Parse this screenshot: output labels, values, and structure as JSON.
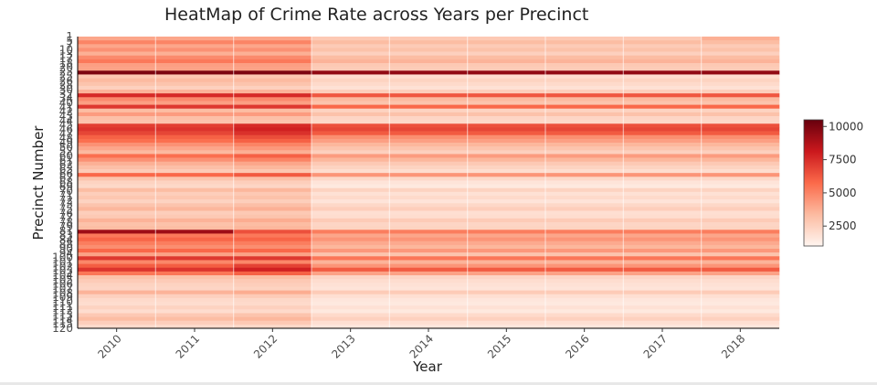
{
  "chart_data": {
    "type": "heatmap",
    "title": "HeatMap of Crime Rate across Years per Precinct",
    "xlabel": "Year",
    "ylabel": "Precinct Number",
    "x": [
      "2010",
      "2011",
      "2012",
      "2013",
      "2014",
      "2015",
      "2016",
      "2017",
      "2018"
    ],
    "y": [
      "1",
      "5",
      "6",
      "7",
      "9",
      "10",
      "13",
      "14",
      "17",
      "18",
      "19",
      "20",
      "22",
      "23",
      "24",
      "25",
      "26",
      "28",
      "30",
      "32",
      "33",
      "34",
      "40",
      "41",
      "42",
      "43",
      "44",
      "45",
      "46",
      "47",
      "48",
      "49",
      "50",
      "52",
      "60",
      "61",
      "62",
      "63",
      "66",
      "67",
      "68",
      "69",
      "70",
      "71",
      "72",
      "73",
      "75",
      "76",
      "77",
      "78",
      "79",
      "81",
      "83",
      "84",
      "88",
      "90",
      "94",
      "100",
      "101",
      "102",
      "103",
      "104",
      "105",
      "106",
      "107",
      "108",
      "109",
      "110",
      "111",
      "112",
      "113",
      "114",
      "115",
      "120",
      "121",
      "122",
      "123"
    ],
    "y_ticks_shown": [
      "1",
      "5",
      "7",
      "10",
      "13",
      "17",
      "18",
      "20",
      "23",
      "25",
      "26",
      "28",
      "30",
      "32",
      "34",
      "40",
      "41",
      "42",
      "43",
      "44",
      "45",
      "46",
      "47",
      "48",
      "49",
      "50",
      "52",
      "60",
      "61",
      "62",
      "63",
      "66",
      "67",
      "68",
      "69",
      "70",
      "71",
      "72",
      "73",
      "75",
      "76",
      "77",
      "78",
      "79",
      "81",
      "83",
      "84",
      "88",
      "90",
      "94",
      "100",
      "101",
      "102",
      "103",
      "104",
      "105",
      "106",
      "107",
      "108",
      "109",
      "110",
      "111",
      "112",
      "113",
      "114",
      "115",
      "120"
    ],
    "values": [
      [
        4000,
        4000,
        4000,
        2800,
        2800,
        2800,
        2800,
        2800,
        3700
      ],
      [
        5000,
        5000,
        5000,
        3300,
        3300,
        3300,
        3300,
        3300,
        3300
      ],
      [
        4000,
        4000,
        4000,
        2700,
        2700,
        2700,
        2700,
        2700,
        2700
      ],
      [
        4600,
        4600,
        4600,
        3100,
        3100,
        3100,
        3100,
        3100,
        3100
      ],
      [
        3700,
        3700,
        3700,
        2500,
        2500,
        2500,
        2500,
        2500,
        2500
      ],
      [
        4800,
        4800,
        4800,
        3300,
        3300,
        3300,
        3300,
        3300,
        3300
      ],
      [
        5300,
        5300,
        5300,
        3600,
        3600,
        3600,
        3600,
        3600,
        3600
      ],
      [
        4200,
        4200,
        4200,
        2800,
        2800,
        2800,
        2800,
        2800,
        2800
      ],
      [
        4100,
        4100,
        4100,
        2700,
        2700,
        2700,
        2700,
        2700,
        2700
      ],
      [
        10000,
        10000,
        10000,
        9500,
        9500,
        9500,
        9500,
        9500,
        9500
      ],
      [
        2900,
        2900,
        2900,
        2000,
        2000,
        2000,
        2000,
        2000,
        2000
      ],
      [
        3400,
        3400,
        3400,
        2400,
        2400,
        2400,
        2400,
        2400,
        2400
      ],
      [
        3000,
        3000,
        3000,
        2100,
        2100,
        2100,
        2100,
        2100,
        2100
      ],
      [
        2500,
        2500,
        2500,
        1800,
        1800,
        1800,
        1800,
        1800,
        1800
      ],
      [
        3600,
        3600,
        3600,
        2600,
        2600,
        2600,
        2600,
        2600,
        2600
      ],
      [
        7600,
        7600,
        7600,
        6300,
        6300,
        6300,
        6300,
        6300,
        6300
      ],
      [
        4800,
        4800,
        4800,
        3400,
        3400,
        3400,
        3400,
        3400,
        3400
      ],
      [
        4200,
        4200,
        4200,
        3000,
        3000,
        3000,
        3000,
        3000,
        3000
      ],
      [
        7200,
        7200,
        7200,
        5800,
        5800,
        5800,
        5800,
        5800,
        5800
      ],
      [
        3300,
        3300,
        3300,
        2400,
        2400,
        2400,
        2400,
        2400,
        2400
      ],
      [
        4300,
        4300,
        4300,
        3100,
        3100,
        3100,
        3100,
        3100,
        3100
      ],
      [
        3200,
        3200,
        3200,
        2300,
        2300,
        2300,
        2300,
        2300,
        2300
      ],
      [
        3000,
        3000,
        3000,
        2200,
        2200,
        2200,
        2200,
        2200,
        2200
      ],
      [
        7000,
        7000,
        7600,
        6500,
        6500,
        6500,
        6500,
        6500,
        6500
      ],
      [
        7300,
        7300,
        7900,
        6800,
        6800,
        6800,
        6800,
        6800,
        6800
      ],
      [
        6800,
        6800,
        7400,
        6200,
        6200,
        6200,
        6200,
        6200,
        6200
      ],
      [
        6000,
        6000,
        6600,
        4700,
        4700,
        4700,
        4700,
        4700,
        4700
      ],
      [
        5600,
        5600,
        6000,
        4200,
        4200,
        4200,
        4200,
        4200,
        4200
      ],
      [
        4600,
        4600,
        5000,
        3500,
        3500,
        3500,
        3500,
        3500,
        3500
      ],
      [
        4000,
        4000,
        4400,
        3000,
        3000,
        3000,
        3000,
        3000,
        3000
      ],
      [
        3400,
        3400,
        3700,
        2500,
        2500,
        2500,
        2500,
        2500,
        2500
      ],
      [
        5600,
        5600,
        6000,
        4300,
        4300,
        4300,
        4300,
        4300,
        4300
      ],
      [
        4600,
        4600,
        5000,
        3500,
        3500,
        3500,
        3500,
        3500,
        3500
      ],
      [
        3700,
        3700,
        4000,
        2800,
        2800,
        2800,
        2800,
        2800,
        2800
      ],
      [
        3200,
        3200,
        3500,
        2400,
        2400,
        2400,
        2400,
        2400,
        2400
      ],
      [
        2700,
        2700,
        2900,
        2000,
        2000,
        2000,
        2000,
        2000,
        2000
      ],
      [
        5800,
        5800,
        6200,
        4500,
        4500,
        4500,
        4500,
        4500,
        4500
      ],
      [
        3000,
        3000,
        3200,
        2200,
        2200,
        2200,
        2200,
        2200,
        2200
      ],
      [
        2400,
        2400,
        2600,
        1700,
        1700,
        1700,
        1700,
        1700,
        1700
      ],
      [
        2200,
        2200,
        2300,
        1500,
        1500,
        1500,
        1500,
        1500,
        1500
      ],
      [
        3300,
        3300,
        3500,
        2400,
        2400,
        2400,
        2400,
        2400,
        2400
      ],
      [
        2600,
        2600,
        2800,
        1800,
        1800,
        1800,
        1800,
        1800,
        1800
      ],
      [
        2900,
        2900,
        3100,
        2100,
        2100,
        2100,
        2100,
        2100,
        2100
      ],
      [
        2400,
        2400,
        2600,
        1700,
        1700,
        1700,
        1700,
        1700,
        1700
      ],
      [
        3000,
        3000,
        3200,
        2200,
        2200,
        2200,
        2200,
        2200,
        2200
      ],
      [
        3500,
        3500,
        3700,
        2600,
        2600,
        2600,
        2600,
        2600,
        2600
      ],
      [
        2600,
        2600,
        2800,
        1900,
        1900,
        1900,
        1900,
        1900,
        1900
      ],
      [
        2800,
        2800,
        3000,
        2000,
        2000,
        2000,
        2000,
        2000,
        2000
      ],
      [
        3600,
        3600,
        3800,
        2700,
        2700,
        2700,
        2700,
        2700,
        2700
      ],
      [
        3100,
        3100,
        3300,
        2300,
        2300,
        2300,
        2300,
        2300,
        2300
      ],
      [
        3300,
        3300,
        3500,
        2400,
        2400,
        2400,
        2400,
        2400,
        2400
      ],
      [
        9200,
        9200,
        6500,
        5200,
        5200,
        5200,
        5200,
        5200,
        5200
      ],
      [
        5300,
        5300,
        5300,
        4000,
        4000,
        4000,
        4000,
        4000,
        4000
      ],
      [
        5900,
        5900,
        5900,
        4500,
        4500,
        4500,
        4500,
        4500,
        4500
      ],
      [
        5200,
        5200,
        5200,
        3900,
        3900,
        3900,
        3900,
        3900,
        3900
      ],
      [
        4700,
        4700,
        4700,
        3500,
        3500,
        3500,
        3500,
        3500,
        3500
      ],
      [
        5800,
        5800,
        5800,
        4400,
        4400,
        4400,
        4400,
        4400,
        4400
      ],
      [
        4100,
        4100,
        4100,
        3000,
        3000,
        3000,
        3000,
        3000,
        3000
      ],
      [
        7200,
        7200,
        7200,
        5400,
        5400,
        5400,
        5400,
        5400,
        5400
      ],
      [
        4900,
        4900,
        4900,
        3600,
        3600,
        3600,
        3600,
        3600,
        3600
      ],
      [
        6100,
        6100,
        6900,
        4500,
        4500,
        4500,
        4500,
        4500,
        4500
      ],
      [
        7300,
        7300,
        7900,
        6200,
        6200,
        6200,
        6200,
        6200,
        6200
      ],
      [
        5400,
        5400,
        6000,
        4100,
        4100,
        4100,
        4100,
        4100,
        4100
      ],
      [
        3100,
        3100,
        3300,
        2300,
        2300,
        2300,
        2300,
        2300,
        2300
      ],
      [
        2700,
        2700,
        2800,
        2000,
        2000,
        2000,
        2000,
        2000,
        2000
      ],
      [
        2400,
        2400,
        2600,
        1800,
        1800,
        1800,
        1800,
        1800,
        1800
      ],
      [
        2300,
        2300,
        2400,
        1700,
        1700,
        1700,
        1700,
        1700,
        1700
      ],
      [
        3600,
        3600,
        3800,
        2700,
        2700,
        2700,
        2700,
        2700,
        2700
      ],
      [
        2500,
        2500,
        2700,
        1900,
        1900,
        1900,
        1900,
        1900,
        1900
      ],
      [
        2100,
        2100,
        2200,
        1600,
        1600,
        1600,
        1600,
        1600,
        1600
      ],
      [
        2000,
        2000,
        2100,
        1500,
        1500,
        1500,
        1500,
        1500,
        1500
      ],
      [
        2400,
        2400,
        2500,
        1800,
        1800,
        1800,
        1800,
        1800,
        1800
      ],
      [
        2000,
        2000,
        2100,
        1500,
        1500,
        1500,
        1500,
        1500,
        1500
      ],
      [
        2800,
        2800,
        3000,
        2100,
        2100,
        2100,
        2100,
        2100,
        2100
      ],
      [
        3300,
        3300,
        3500,
        2500,
        2500,
        2500,
        2500,
        2500,
        2500
      ],
      [
        2600,
        2600,
        2800,
        1900,
        1900,
        1900,
        1900,
        1900,
        1900
      ],
      [
        2100,
        2100,
        2200,
        1600,
        1600,
        1600,
        1600,
        1600,
        1600
      ]
    ],
    "color_scale": {
      "low": "#fff5f0",
      "high": "#67000d",
      "range": [
        1000,
        10500
      ]
    },
    "colorbar_ticks": [
      2500,
      5000,
      7500,
      10000
    ],
    "colorbar_tick_labels": [
      "2500",
      "5000",
      "7500",
      "10000"
    ],
    "legend_placement": "right",
    "grid": false
  }
}
